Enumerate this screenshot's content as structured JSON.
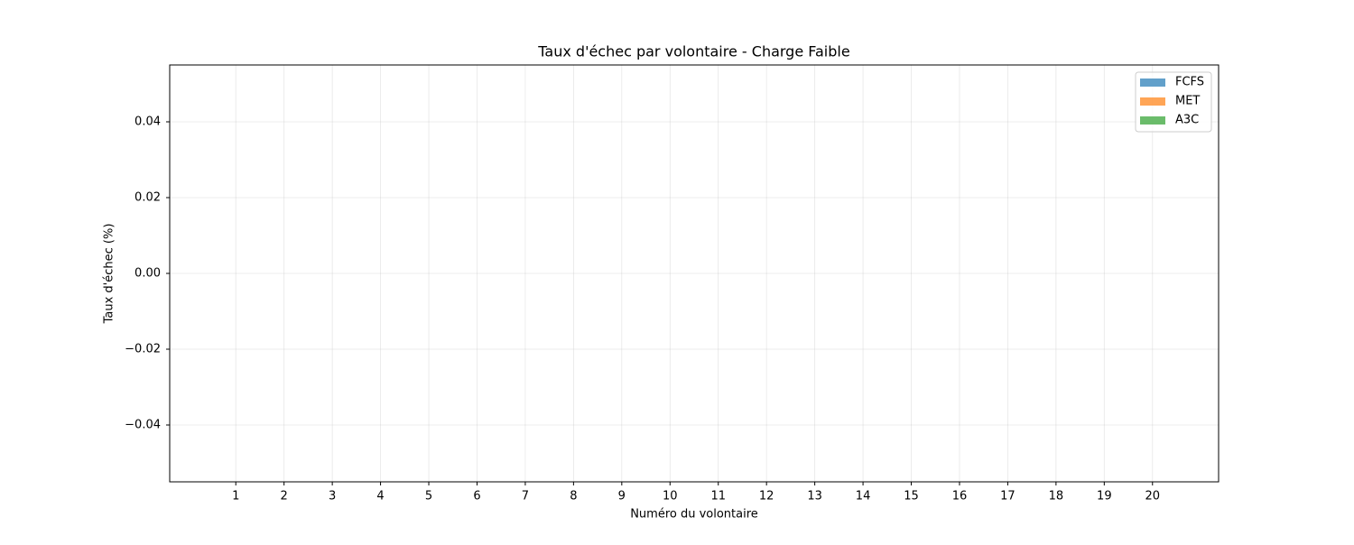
{
  "chart_data": {
    "type": "bar",
    "title": "Taux d'échec par volontaire - Charge Faible",
    "x_label": "Numéro du volontaire",
    "y_label": "Taux d'échec (%)",
    "categories": [
      "1",
      "2",
      "3",
      "4",
      "5",
      "6",
      "7",
      "8",
      "9",
      "10",
      "11",
      "12",
      "13",
      "14",
      "15",
      "16",
      "17",
      "18",
      "19",
      "20"
    ],
    "series": [
      {
        "name": "FCFS",
        "color": "#1f77b4",
        "values": [
          0,
          0,
          0,
          0,
          0,
          0,
          0,
          0,
          0,
          0,
          0,
          0,
          0,
          0,
          0,
          0,
          0,
          0,
          0,
          0
        ]
      },
      {
        "name": "MET",
        "color": "#ff7f0e",
        "values": [
          0,
          0,
          0,
          0,
          0,
          0,
          0,
          0,
          0,
          0,
          0,
          0,
          0,
          0,
          0,
          0,
          0,
          0,
          0,
          0
        ]
      },
      {
        "name": "A3C",
        "color": "#2ca02c",
        "values": [
          0,
          0,
          0,
          0,
          0,
          0,
          0,
          0,
          0,
          0,
          0,
          0,
          0,
          0,
          0,
          0,
          0,
          0,
          0,
          0
        ]
      }
    ],
    "alpha": 0.7,
    "ylim": [
      -0.055,
      0.055
    ],
    "yticks": [
      {
        "value": -0.04,
        "label": "−0.04"
      },
      {
        "value": -0.02,
        "label": "−0.02"
      },
      {
        "value": 0,
        "label": "0.00"
      },
      0.02,
      0.04
    ],
    "grid": true,
    "legend": "upper right"
  }
}
